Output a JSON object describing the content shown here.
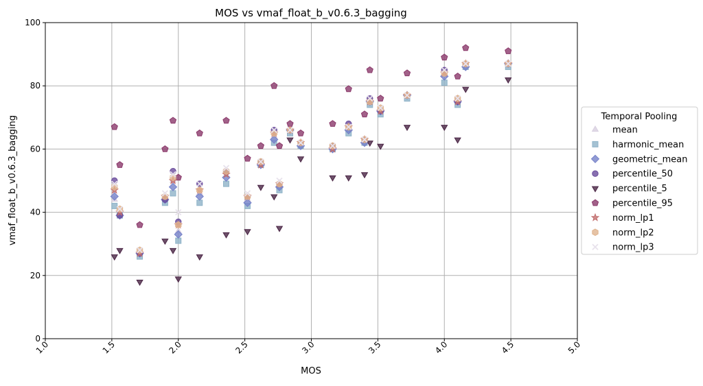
{
  "chart_data": {
    "type": "scatter",
    "title": "MOS vs vmaf_float_b_v0.6.3_bagging",
    "xlabel": "MOS",
    "ylabel": "vmaf_float_b_v0.6.3_bagging",
    "xlim": [
      1.0,
      5.0
    ],
    "ylim": [
      0,
      100
    ],
    "xticks": [
      "1.0",
      "1.5",
      "2.0",
      "2.5",
      "3.0",
      "3.5",
      "4.0",
      "4.5",
      "5.0"
    ],
    "yticks": [
      "0",
      "20",
      "40",
      "60",
      "80",
      "100"
    ],
    "grid": true,
    "legend_title": "Temporal Pooling",
    "legend_position": "center-right (outside)",
    "x": [
      1.52,
      1.56,
      1.71,
      1.9,
      1.96,
      2.0,
      2.16,
      2.36,
      2.52,
      2.62,
      2.72,
      2.76,
      2.84,
      2.92,
      3.16,
      3.28,
      3.4,
      3.44,
      3.52,
      3.72,
      4.0,
      4.1,
      4.16,
      4.48
    ],
    "series": [
      {
        "name": "mean",
        "marker": "triangle",
        "color": "#d8cfe0",
        "values": [
          44,
          40,
          27,
          45,
          50,
          34,
          46,
          53,
          44,
          55,
          64,
          48,
          66,
          61,
          60,
          66,
          62,
          75,
          72,
          77,
          84,
          76,
          87,
          87
        ]
      },
      {
        "name": "harmonic_mean",
        "marker": "square",
        "color": "#8fb3c8",
        "values": [
          42,
          39,
          26,
          43,
          46,
          31,
          43,
          49,
          42,
          55,
          62,
          47,
          65,
          61,
          60,
          65,
          62,
          74,
          71,
          76,
          81,
          74,
          86,
          86
        ]
      },
      {
        "name": "geometric_mean",
        "marker": "diamond",
        "color": "#7682c9",
        "values": [
          45,
          39,
          27,
          44,
          48,
          33,
          45,
          51,
          43,
          55,
          63,
          48,
          66,
          61,
          60,
          66,
          62,
          75,
          72,
          77,
          83,
          75,
          86,
          87
        ]
      },
      {
        "name": "percentile_50",
        "marker": "circle",
        "color": "#6a4c9c",
        "values": [
          50,
          39,
          27,
          44,
          53,
          37,
          49,
          53,
          45,
          56,
          66,
          49,
          66,
          62,
          61,
          68,
          63,
          76,
          72,
          77,
          85,
          75,
          87,
          87
        ]
      },
      {
        "name": "percentile_5",
        "marker": "triangle-down",
        "color": "#4a2545",
        "values": [
          26,
          28,
          18,
          31,
          28,
          19,
          26,
          33,
          34,
          48,
          45,
          35,
          63,
          57,
          51,
          51,
          52,
          62,
          61,
          67,
          67,
          63,
          79,
          82
        ]
      },
      {
        "name": "percentile_95",
        "marker": "pentagon",
        "color": "#8b3a6b",
        "values": [
          67,
          55,
          36,
          60,
          69,
          51,
          65,
          69,
          57,
          61,
          80,
          61,
          68,
          65,
          68,
          79,
          71,
          85,
          76,
          84,
          89,
          83,
          92,
          91
        ]
      },
      {
        "name": "norm_lp1",
        "marker": "star",
        "color": "#c26f6f",
        "values": [
          47,
          40,
          27,
          45,
          50,
          36,
          47,
          52,
          45,
          55,
          65,
          49,
          66,
          62,
          60,
          67,
          63,
          75,
          72,
          77,
          84,
          75,
          87,
          87
        ]
      },
      {
        "name": "norm_lp2",
        "marker": "hexagon",
        "color": "#e0b48f",
        "values": [
          48,
          41,
          28,
          45,
          51,
          36,
          47,
          53,
          45,
          56,
          65,
          49,
          66,
          62,
          61,
          67,
          63,
          75,
          73,
          77,
          84,
          76,
          87,
          87
        ]
      },
      {
        "name": "norm_lp3",
        "marker": "x",
        "color": "#e8e2ec",
        "values": [
          49,
          41,
          28,
          46,
          52,
          40,
          49,
          54,
          46,
          56,
          66,
          50,
          66,
          62,
          61,
          67,
          63,
          76,
          73,
          77,
          85,
          76,
          87,
          87
        ]
      }
    ]
  }
}
